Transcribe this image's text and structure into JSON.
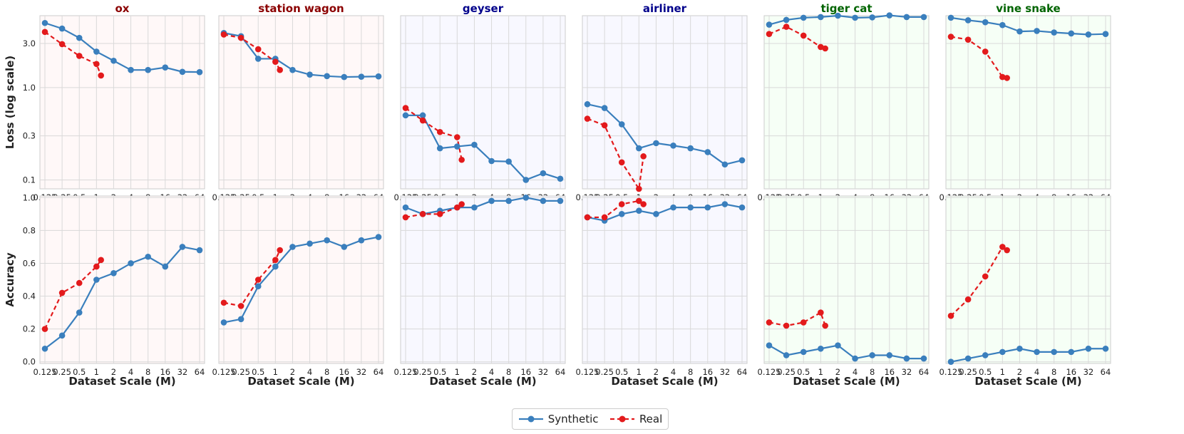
{
  "chart_data": {
    "type": "line",
    "x": [
      "0.125",
      "0.25",
      "0.5",
      "1",
      "2",
      "4",
      "8",
      "16",
      "32",
      "64"
    ],
    "xlabel": "Dataset Scale (M)",
    "loss_axis": {
      "ylabel": "Loss (log scale)",
      "scale": "log",
      "ylim": [
        0.08,
        6.0
      ],
      "ticks": [
        0.1,
        0.3,
        1.0,
        3.0
      ],
      "tick_labels": [
        "0.1",
        "0.3",
        "1.0",
        "3.0"
      ]
    },
    "accuracy_axis": {
      "ylabel": "Accuracy",
      "ylim": [
        -0.01,
        1.01
      ],
      "ticks": [
        0.0,
        0.2,
        0.4,
        0.6,
        0.8,
        1.0
      ],
      "tick_labels": [
        "0.0",
        "0.2",
        "0.4",
        "0.6",
        "0.8",
        "1.0"
      ]
    },
    "legend": {
      "placement": "bottom-center",
      "synthetic": "Synthetic",
      "real": "Real"
    },
    "colors": {
      "synthetic": "#3a7fbd",
      "real": "#e31a1c",
      "red_group": "#8b0000",
      "blue_group": "#00008b",
      "green_group": "#006400",
      "red_bg": "#fff8f8",
      "blue_bg": "#f8f8ff",
      "green_bg": "#f6fff6"
    },
    "panels": [
      {
        "title": "ox",
        "group": "red",
        "loss": {
          "synthetic": [
            5.0,
            4.35,
            3.45,
            2.45,
            1.95,
            1.55,
            1.55,
            1.65,
            1.48,
            1.47
          ],
          "real_x": [
            0.125,
            0.25,
            0.5,
            1.0,
            1.2
          ],
          "real": [
            4.0,
            2.95,
            2.2,
            1.8,
            1.35
          ]
        },
        "accuracy": {
          "synthetic": [
            0.08,
            0.16,
            0.3,
            0.5,
            0.54,
            0.6,
            0.64,
            0.58,
            0.7,
            0.68
          ],
          "real_x": [
            0.125,
            0.25,
            0.5,
            1.0,
            1.2
          ],
          "real": [
            0.2,
            0.42,
            0.48,
            0.58,
            0.62
          ]
        }
      },
      {
        "title": "station wagon",
        "group": "red",
        "loss": {
          "synthetic": [
            3.9,
            3.6,
            2.05,
            2.05,
            1.55,
            1.38,
            1.33,
            1.3,
            1.31,
            1.32
          ],
          "real_x": [
            0.125,
            0.25,
            0.5,
            1.0,
            1.2
          ],
          "real": [
            3.75,
            3.45,
            2.6,
            1.9,
            1.55
          ]
        },
        "accuracy": {
          "synthetic": [
            0.24,
            0.26,
            0.46,
            0.58,
            0.7,
            0.72,
            0.74,
            0.7,
            0.74,
            0.76
          ],
          "real_x": [
            0.125,
            0.25,
            0.5,
            1.0,
            1.2
          ],
          "real": [
            0.36,
            0.34,
            0.5,
            0.62,
            0.68
          ]
        }
      },
      {
        "title": "geyser",
        "group": "blue",
        "loss": {
          "synthetic": [
            0.5,
            0.5,
            0.22,
            0.23,
            0.24,
            0.16,
            0.158,
            0.1,
            0.118,
            0.103
          ],
          "real_x": [
            0.125,
            0.25,
            0.5,
            1.0,
            1.2
          ],
          "real": [
            0.6,
            0.44,
            0.33,
            0.29,
            0.165
          ]
        },
        "accuracy": {
          "synthetic": [
            0.94,
            0.9,
            0.92,
            0.94,
            0.94,
            0.98,
            0.98,
            1.0,
            0.98,
            0.98
          ],
          "real_x": [
            0.125,
            0.25,
            0.5,
            1.0,
            1.2
          ],
          "real": [
            0.88,
            0.9,
            0.9,
            0.94,
            0.96
          ]
        }
      },
      {
        "title": "airliner",
        "group": "blue",
        "loss": {
          "synthetic": [
            0.66,
            0.6,
            0.4,
            0.22,
            0.25,
            0.235,
            0.22,
            0.2,
            0.147,
            0.163
          ],
          "real_x": [
            0.125,
            0.25,
            0.5,
            1.0,
            1.2
          ],
          "real": [
            0.46,
            0.39,
            0.155,
            0.08,
            0.18
          ]
        },
        "accuracy": {
          "synthetic": [
            0.88,
            0.86,
            0.9,
            0.92,
            0.9,
            0.94,
            0.94,
            0.94,
            0.96,
            0.94
          ],
          "real_x": [
            0.125,
            0.25,
            0.5,
            1.0,
            1.2
          ],
          "real": [
            0.88,
            0.88,
            0.96,
            0.98,
            0.96
          ]
        }
      },
      {
        "title": "tiger cat",
        "group": "green",
        "loss": {
          "synthetic": [
            4.8,
            5.4,
            5.7,
            5.8,
            6.0,
            5.7,
            5.75,
            6.05,
            5.8,
            5.8
          ],
          "real_x": [
            0.125,
            0.25,
            0.5,
            1.0,
            1.2
          ],
          "real": [
            3.8,
            4.55,
            3.65,
            2.75,
            2.65
          ]
        },
        "accuracy": {
          "synthetic": [
            0.1,
            0.04,
            0.06,
            0.08,
            0.1,
            0.02,
            0.04,
            0.04,
            0.02,
            0.02
          ],
          "real_x": [
            0.125,
            0.25,
            0.5,
            1.0,
            1.2
          ],
          "real": [
            0.24,
            0.22,
            0.24,
            0.3,
            0.22
          ]
        }
      },
      {
        "title": "vine snake",
        "group": "green",
        "loss": {
          "synthetic": [
            5.7,
            5.35,
            5.1,
            4.75,
            4.05,
            4.1,
            3.95,
            3.85,
            3.75,
            3.8
          ],
          "real_x": [
            0.125,
            0.25,
            0.5,
            1.0,
            1.2
          ],
          "real": [
            3.55,
            3.3,
            2.45,
            1.3,
            1.27
          ]
        },
        "accuracy": {
          "synthetic": [
            0.0,
            0.02,
            0.04,
            0.06,
            0.08,
            0.06,
            0.06,
            0.06,
            0.08,
            0.08
          ],
          "real_x": [
            0.125,
            0.25,
            0.5,
            1.0,
            1.2
          ],
          "real": [
            0.28,
            0.38,
            0.52,
            0.7,
            0.68
          ]
        }
      }
    ]
  }
}
